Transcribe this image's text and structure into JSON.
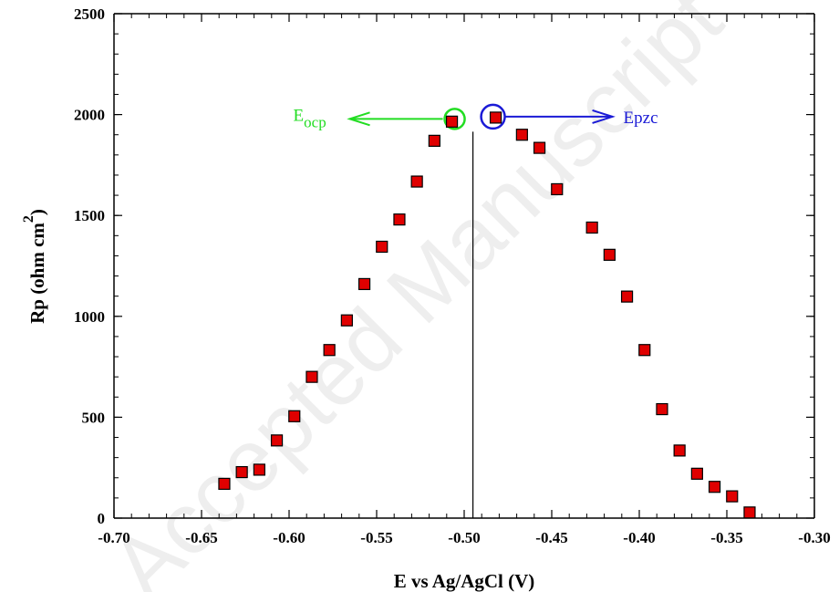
{
  "chart_data": {
    "type": "scatter",
    "xlabel": "E vs Ag/AgCl (V)",
    "ylabel_main": "Rp (ohm cm",
    "ylabel_sup": "2",
    "ylabel_close": ")",
    "xlim": [
      -0.7,
      -0.3
    ],
    "ylim": [
      0,
      2500
    ],
    "xticks": [
      -0.7,
      -0.65,
      -0.6,
      -0.55,
      -0.5,
      -0.45,
      -0.4,
      -0.35,
      -0.3
    ],
    "xtick_labels": [
      "-0.70",
      "-0.65",
      "-0.60",
      "-0.55",
      "-0.50",
      "-0.45",
      "-0.40",
      "-0.35",
      "-0.30"
    ],
    "yticks": [
      0,
      500,
      1000,
      1500,
      2000,
      2500
    ],
    "ytick_labels": [
      "0",
      "500",
      "1000",
      "1500",
      "2000",
      "2500"
    ],
    "marker_color": "#e00000",
    "series": [
      {
        "x": [
          -0.637,
          -0.627,
          -0.617,
          -0.607,
          -0.597,
          -0.587,
          -0.577,
          -0.567,
          -0.557,
          -0.547,
          -0.537,
          -0.527,
          -0.517,
          -0.507,
          -0.482,
          -0.467,
          -0.457,
          -0.447,
          -0.427,
          -0.417,
          -0.407,
          -0.397,
          -0.387,
          -0.377,
          -0.367,
          -0.357,
          -0.347,
          -0.337
        ],
        "y": [
          170,
          228,
          240,
          385,
          505,
          700,
          833,
          980,
          1160,
          1345,
          1480,
          1668,
          1870,
          1965,
          1985,
          1900,
          1835,
          1630,
          1440,
          1305,
          1098,
          833,
          540,
          335,
          220,
          155,
          108,
          28
        ]
      }
    ],
    "vertical_line_x": -0.495,
    "annotations": {
      "eocp": {
        "main": "E",
        "sub": "ocp",
        "color": "#22dd22",
        "point_x": -0.507,
        "point_y": 1965
      },
      "epzc": {
        "text": "Epzc",
        "color": "#1a1ad6",
        "point_x": -0.482,
        "point_y": 1985
      }
    }
  },
  "watermark": {
    "text": "Accepted Manuscript",
    "color": "#eeeeee"
  }
}
